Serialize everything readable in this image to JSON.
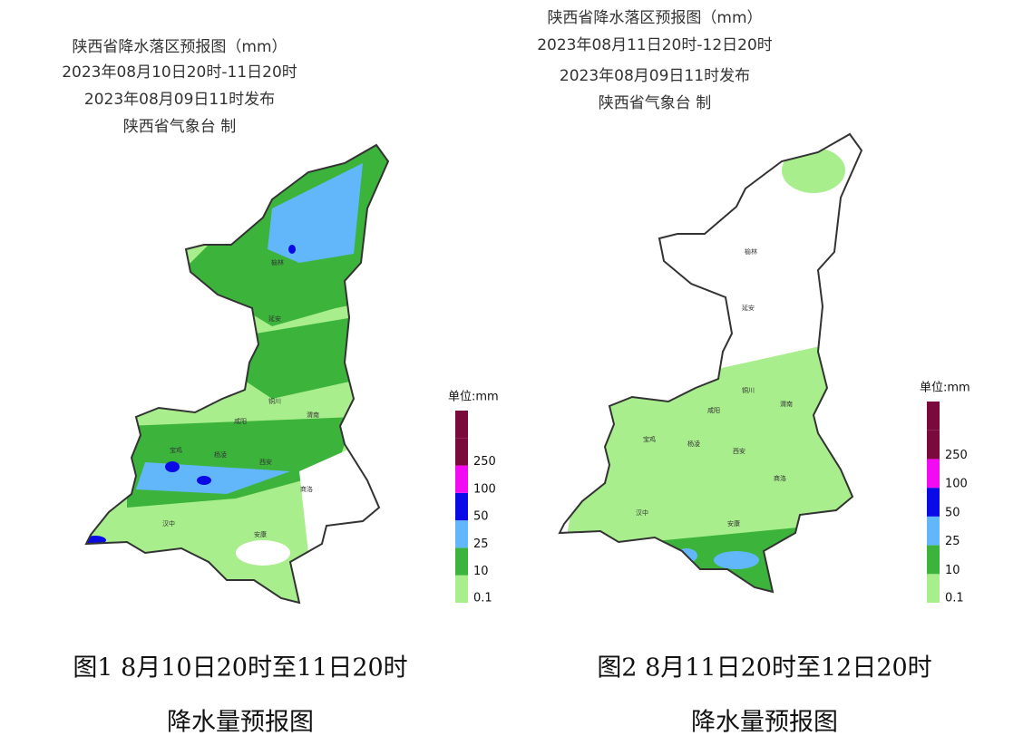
{
  "maps": [
    {
      "title_lines": [
        "陕西省降水落区预报图（mm）",
        "2023年08月10日20时-11日20时",
        "2023年08月09日11时发布",
        "陕西省气象台 制"
      ],
      "cities": [
        "榆林",
        "延安",
        "铜川",
        "渭南",
        "咸阳",
        "宝鸡",
        "杨凌",
        "西安",
        "商洛",
        "汉中",
        "安康"
      ],
      "caption": [
        "图1 8月10日20时至11日20时",
        "降水量预报图"
      ]
    },
    {
      "title_lines": [
        "陕西省降水落区预报图（mm）",
        "2023年08月11日20时-12日20时",
        "2023年08月09日11时发布",
        "陕西省气象台 制"
      ],
      "cities": [
        "榆林",
        "延安",
        "铜川",
        "渭南",
        "咸阳",
        "宝鸡",
        "杨凌",
        "西安",
        "商洛",
        "汉中",
        "安康"
      ],
      "caption": [
        "图2 8月11日20时至12日20时",
        "降水量预报图"
      ]
    }
  ],
  "legend": {
    "unit": "单位:mm",
    "top_color": "#7a0a3c",
    "levels": [
      {
        "label": "0.1",
        "color": "#a8ee8c"
      },
      {
        "label": "10",
        "color": "#3cb43c"
      },
      {
        "label": "25",
        "color": "#62b6fa"
      },
      {
        "label": "50",
        "color": "#0a0ae6"
      },
      {
        "label": "100",
        "color": "#f20af2"
      },
      {
        "label": "250",
        "color": "#7a0a3c"
      }
    ]
  }
}
